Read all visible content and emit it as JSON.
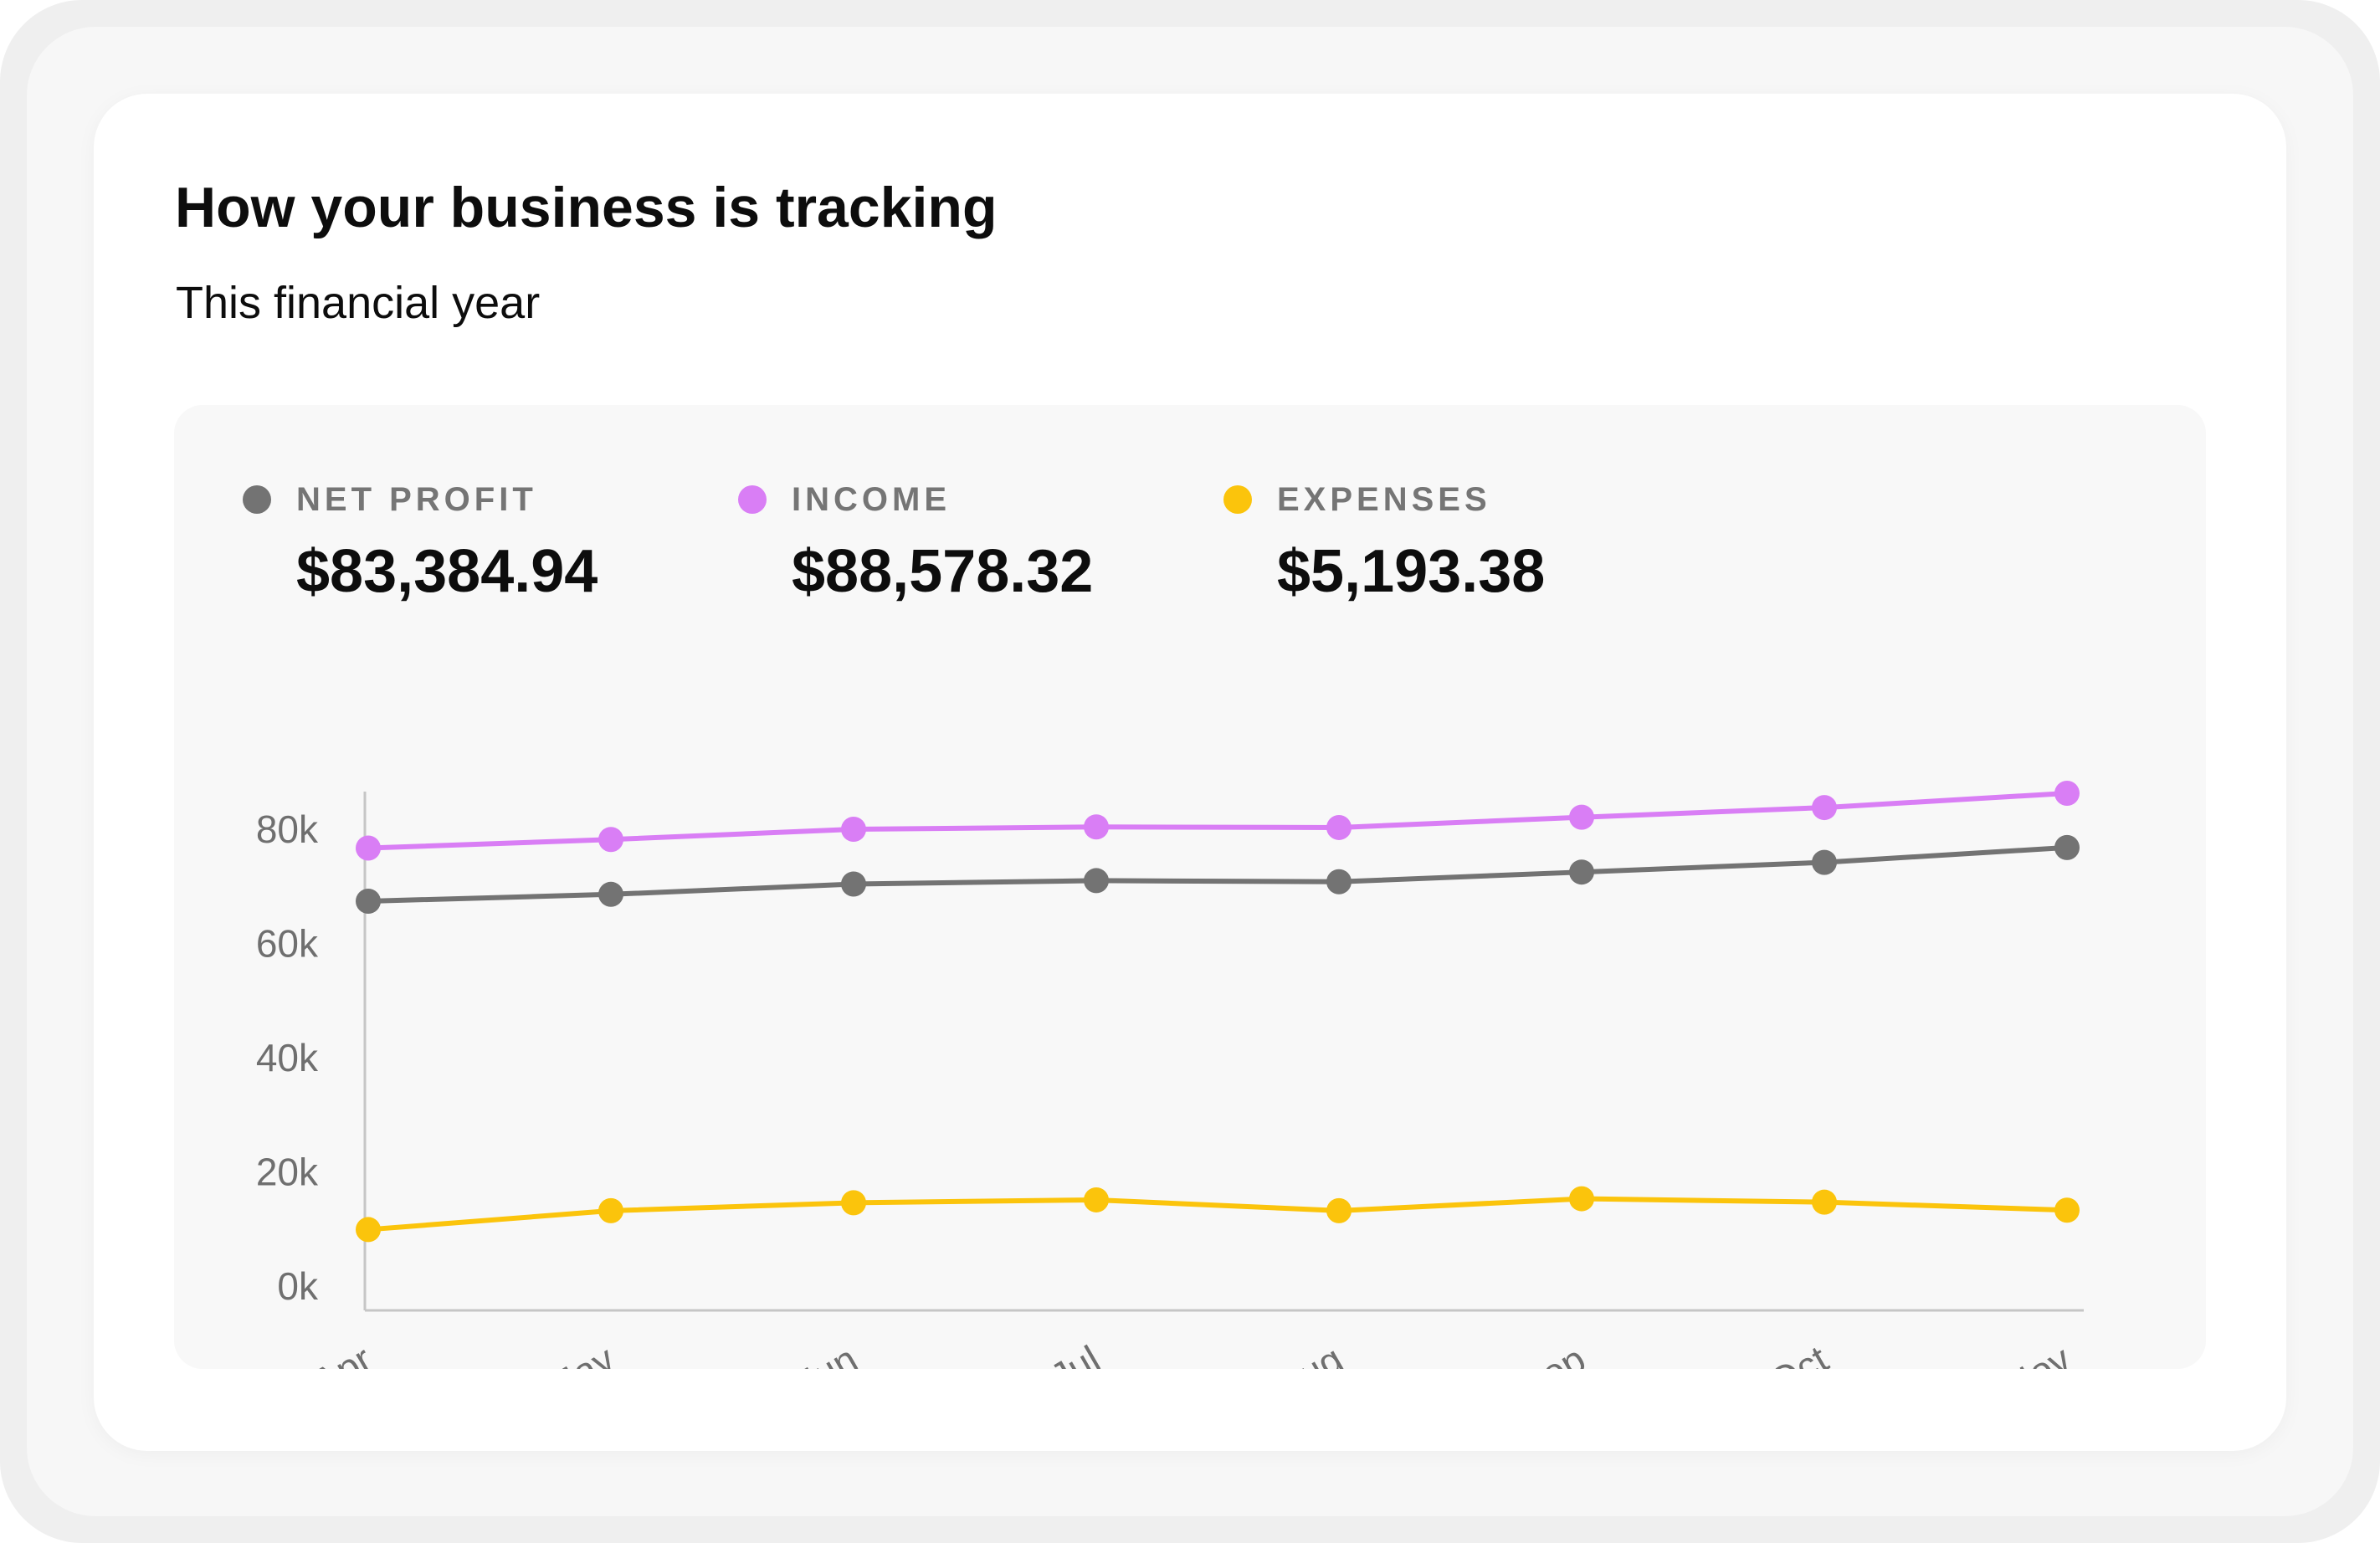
{
  "title": "How your business is tracking",
  "subtitle": "This financial year",
  "summary": [
    {
      "label": "NET PROFIT",
      "value": "$83,384.94",
      "color": "#737373"
    },
    {
      "label": "INCOME",
      "value": "$88,578.32",
      "color": "#d97ef5"
    },
    {
      "label": "EXPENSES",
      "value": "$5,193.38",
      "color": "#fbc40c"
    }
  ],
  "chart_data": {
    "type": "line",
    "categories": [
      "Apr",
      "May",
      "Jun",
      "Jul",
      "Aug",
      "Sep",
      "Oct",
      "Nov"
    ],
    "y_ticks": [
      "0k",
      "20k",
      "40k",
      "60k",
      "80k"
    ],
    "ylim": [
      0,
      85000
    ],
    "grid": false,
    "legend_position": "top",
    "series": [
      {
        "name": "INCOME",
        "color": "#d97ef5",
        "values": [
          76700,
          78200,
          80000,
          80400,
          80300,
          82100,
          83800,
          86300
        ]
      },
      {
        "name": "NET PROFIT",
        "color": "#737373",
        "values": [
          67400,
          68600,
          70400,
          71000,
          70800,
          72500,
          74200,
          76800
        ]
      },
      {
        "name": "EXPENSES",
        "color": "#fbc40c",
        "values": [
          9900,
          13200,
          14600,
          15100,
          13200,
          15300,
          14700,
          13300
        ]
      }
    ]
  }
}
